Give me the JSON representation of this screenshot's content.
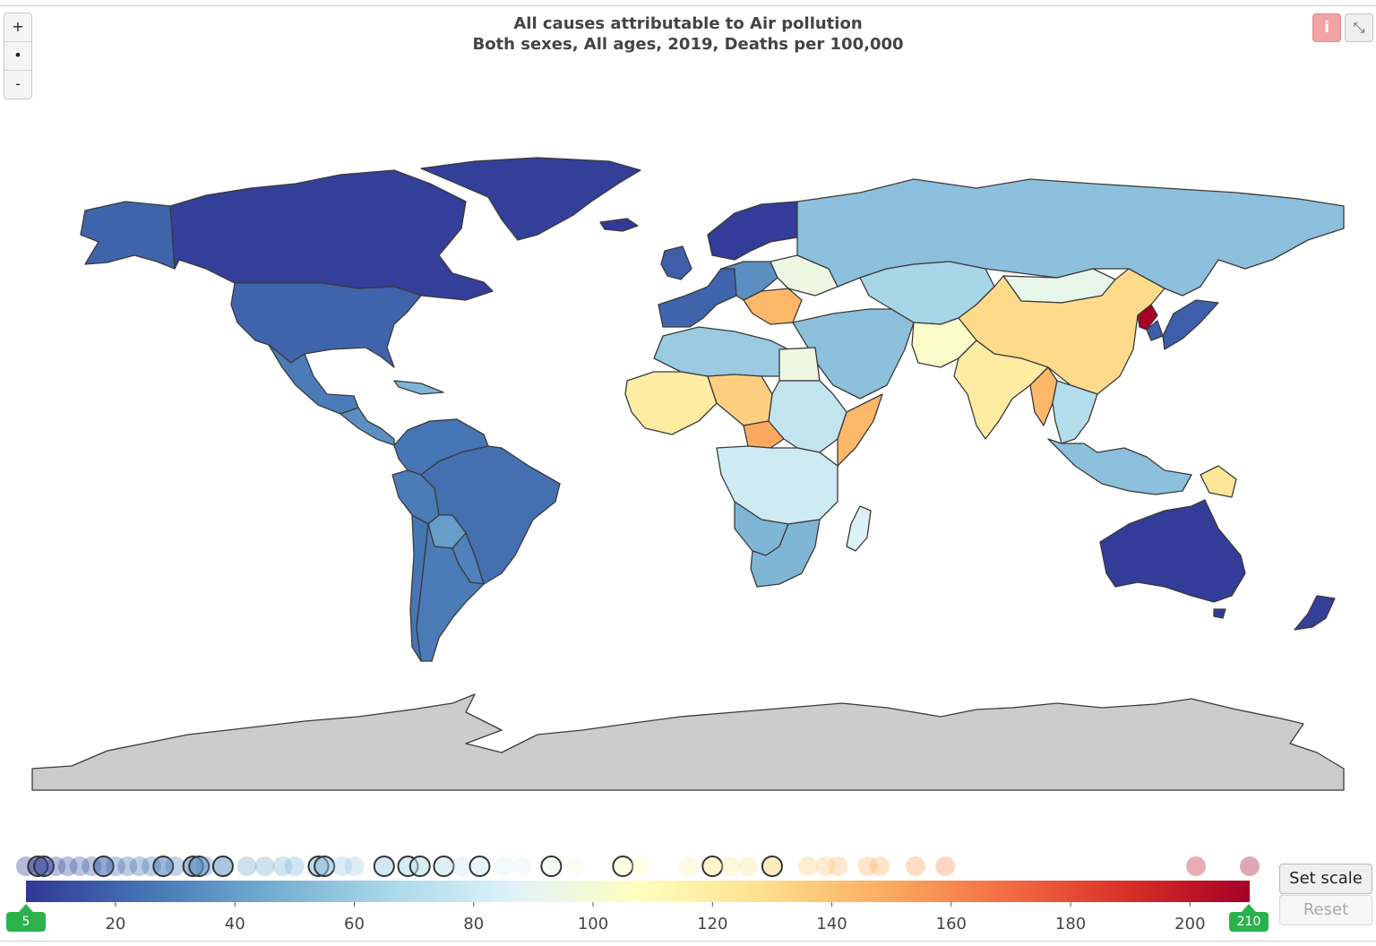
{
  "title_line1": "All causes attributable to Air pollution",
  "title_line2": "Both sexes, All ages, 2019, Deaths per 100,000",
  "zoom": {
    "in": "+",
    "reset": "•",
    "out": "-"
  },
  "info_label": "i",
  "collapse_label": "⤡",
  "buttons": {
    "set_scale": "Set scale",
    "reset": "Reset"
  },
  "chart_data": {
    "type": "choropleth",
    "colorscale": [
      "#313695",
      "#4575b4",
      "#74add1",
      "#abd9e9",
      "#e0f3f8",
      "#ffffbf",
      "#fee090",
      "#fdae61",
      "#f46d43",
      "#d73027",
      "#a50026"
    ],
    "range": [
      5,
      210
    ],
    "ticks": [
      20,
      40,
      60,
      80,
      100,
      120,
      140,
      160,
      180,
      200
    ],
    "handle_min": "5",
    "handle_max": "210",
    "no_data_color": "#cccccc",
    "region_values": [
      {
        "region": "Canada",
        "value": 8
      },
      {
        "region": "United States",
        "value": 20
      },
      {
        "region": "Alaska",
        "value": 20
      },
      {
        "region": "Greenland",
        "value": 8
      },
      {
        "region": "Mexico",
        "value": 28
      },
      {
        "region": "Central America",
        "value": 35
      },
      {
        "region": "Caribbean",
        "value": 50
      },
      {
        "region": "Brazil",
        "value": 24
      },
      {
        "region": "Colombia/Venezuela",
        "value": 26
      },
      {
        "region": "Peru",
        "value": 28
      },
      {
        "region": "Bolivia",
        "value": 40
      },
      {
        "region": "Argentina",
        "value": 28
      },
      {
        "region": "Chile",
        "value": 26
      },
      {
        "region": "Paraguay/Uruguay",
        "value": 30
      },
      {
        "region": "Iceland",
        "value": 6
      },
      {
        "region": "Norway/Sweden/Finland",
        "value": 7
      },
      {
        "region": "United Kingdom/Ireland",
        "value": 18
      },
      {
        "region": "France/Iberia",
        "value": 20
      },
      {
        "region": "Central Europe",
        "value": 35
      },
      {
        "region": "Poland/Ukraine",
        "value": 95
      },
      {
        "region": "Balkans",
        "value": 145
      },
      {
        "region": "Russia",
        "value": 55
      },
      {
        "region": "Kazakhstan/Central Asia",
        "value": 65
      },
      {
        "region": "Mongolia",
        "value": 92
      },
      {
        "region": "China",
        "value": 130
      },
      {
        "region": "North Korea",
        "value": 210
      },
      {
        "region": "South Korea/Japan",
        "value": 18
      },
      {
        "region": "India",
        "value": 120
      },
      {
        "region": "Pakistan/Afghanistan",
        "value": 104
      },
      {
        "region": "Myanmar",
        "value": 145
      },
      {
        "region": "Southeast Asia",
        "value": 70
      },
      {
        "region": "Indonesia",
        "value": 55
      },
      {
        "region": "Papua New Guinea",
        "value": 125
      },
      {
        "region": "Australia",
        "value": 7
      },
      {
        "region": "New Zealand",
        "value": 8
      },
      {
        "region": "Middle East",
        "value": 55
      },
      {
        "region": "Egypt",
        "value": 95
      },
      {
        "region": "North Africa",
        "value": 60
      },
      {
        "region": "West Africa Sahel",
        "value": 120
      },
      {
        "region": "Chad/Niger",
        "value": 135
      },
      {
        "region": "Central African Republic",
        "value": 150
      },
      {
        "region": "Somalia",
        "value": 145
      },
      {
        "region": "East Africa",
        "value": 75
      },
      {
        "region": "Central Africa",
        "value": 80
      },
      {
        "region": "Angola/Namibia",
        "value": 50
      },
      {
        "region": "South Africa",
        "value": 50
      },
      {
        "region": "Madagascar",
        "value": 85
      },
      {
        "region": "Antarctica",
        "value": null
      }
    ],
    "dots": [
      {
        "v": 5,
        "o": false
      },
      {
        "v": 7,
        "o": true
      },
      {
        "v": 8,
        "o": true
      },
      {
        "v": 10,
        "o": false
      },
      {
        "v": 12,
        "o": false
      },
      {
        "v": 14,
        "o": false
      },
      {
        "v": 16,
        "o": false
      },
      {
        "v": 18,
        "o": true
      },
      {
        "v": 20,
        "o": false
      },
      {
        "v": 22,
        "o": false
      },
      {
        "v": 24,
        "o": false
      },
      {
        "v": 26,
        "o": false
      },
      {
        "v": 28,
        "o": true
      },
      {
        "v": 30,
        "o": false
      },
      {
        "v": 33,
        "o": true
      },
      {
        "v": 34,
        "o": true
      },
      {
        "v": 35,
        "o": false
      },
      {
        "v": 38,
        "o": true
      },
      {
        "v": 42,
        "o": false
      },
      {
        "v": 45,
        "o": false
      },
      {
        "v": 48,
        "o": false
      },
      {
        "v": 50,
        "o": false
      },
      {
        "v": 54,
        "o": true
      },
      {
        "v": 55,
        "o": true
      },
      {
        "v": 58,
        "o": false
      },
      {
        "v": 60,
        "o": false
      },
      {
        "v": 65,
        "o": true
      },
      {
        "v": 69,
        "o": true
      },
      {
        "v": 71,
        "o": true
      },
      {
        "v": 75,
        "o": true
      },
      {
        "v": 78,
        "o": false
      },
      {
        "v": 81,
        "o": true
      },
      {
        "v": 85,
        "o": false
      },
      {
        "v": 88,
        "o": false
      },
      {
        "v": 93,
        "o": true
      },
      {
        "v": 97,
        "o": false
      },
      {
        "v": 105,
        "o": true
      },
      {
        "v": 108,
        "o": false
      },
      {
        "v": 116,
        "o": false
      },
      {
        "v": 120,
        "o": true
      },
      {
        "v": 123,
        "o": false
      },
      {
        "v": 126,
        "o": false
      },
      {
        "v": 130,
        "o": true
      },
      {
        "v": 136,
        "o": false
      },
      {
        "v": 139,
        "o": false
      },
      {
        "v": 141,
        "o": false
      },
      {
        "v": 146,
        "o": false
      },
      {
        "v": 148,
        "o": false
      },
      {
        "v": 154,
        "o": false
      },
      {
        "v": 159,
        "o": false
      },
      {
        "v": 201,
        "o": false
      },
      {
        "v": 210,
        "o": false
      }
    ]
  }
}
